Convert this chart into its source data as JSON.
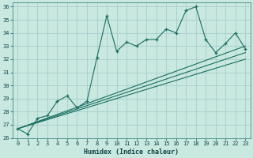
{
  "xlabel": "Humidex (Indice chaleur)",
  "bg_color": "#c8e8e0",
  "grid_color": "#a8cccc",
  "line_color": "#1a6e60",
  "xlim": [
    -0.5,
    23.5
  ],
  "ylim": [
    26,
    36.3
  ],
  "yticks": [
    26,
    27,
    28,
    29,
    30,
    31,
    32,
    33,
    34,
    35,
    36
  ],
  "xticks": [
    0,
    1,
    2,
    3,
    4,
    5,
    6,
    7,
    8,
    9,
    10,
    11,
    12,
    13,
    14,
    15,
    16,
    17,
    18,
    19,
    20,
    21,
    22,
    23
  ],
  "main_x": [
    0,
    1,
    2,
    3,
    4,
    5,
    6,
    7,
    8,
    9,
    10,
    11,
    12,
    13,
    14,
    15,
    16,
    17,
    18,
    19,
    20,
    21,
    22,
    23
  ],
  "main_y": [
    26.7,
    26.3,
    27.5,
    27.7,
    28.8,
    29.2,
    28.3,
    28.8,
    32.1,
    35.3,
    32.6,
    33.3,
    33.0,
    33.5,
    33.5,
    34.3,
    34.0,
    35.7,
    36.0,
    33.5,
    32.5,
    33.2,
    34.0,
    32.8
  ],
  "trend_lines": [
    {
      "x0": 0,
      "y0": 26.7,
      "x1": 23,
      "y1": 33.0
    },
    {
      "x0": 0,
      "y0": 26.7,
      "x1": 23,
      "y1": 32.5
    },
    {
      "x0": 0,
      "y0": 26.7,
      "x1": 23,
      "y1": 32.0
    }
  ],
  "xlabel_fontsize": 6,
  "tick_fontsize": 5
}
